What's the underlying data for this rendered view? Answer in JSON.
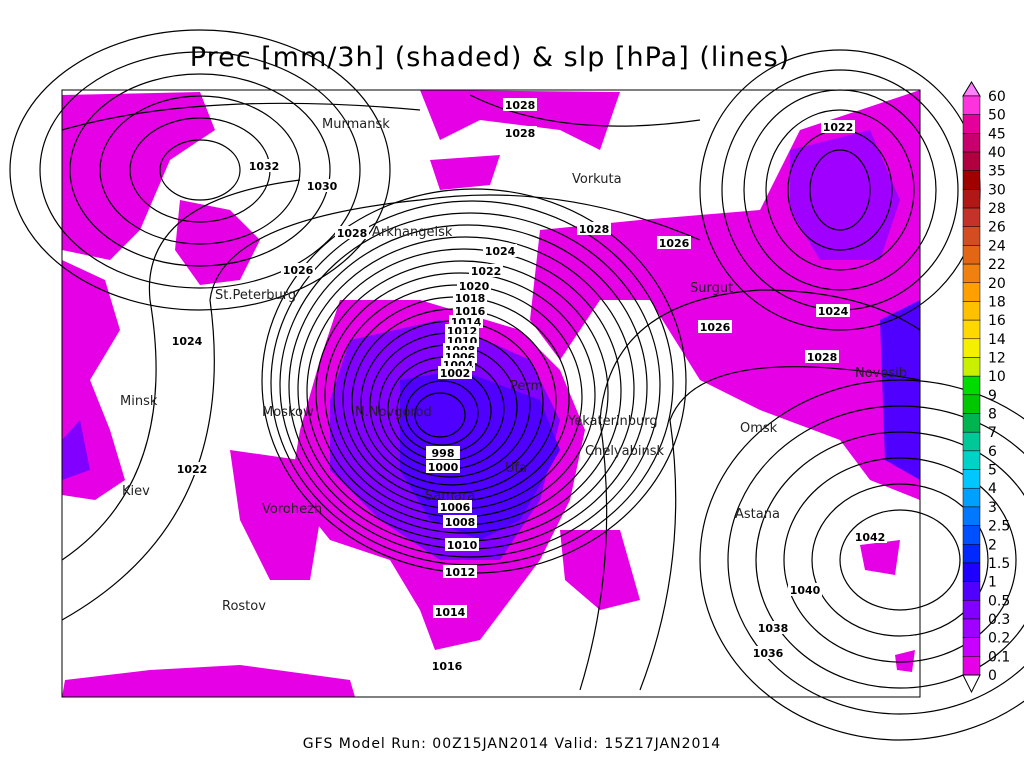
{
  "header": {
    "title": "Prec [mm/3h] (shaded) & slp [hPa] (lines)"
  },
  "footer": "GFS Model Run: 00Z15JAN2014 Valid: 15Z17JAN2014",
  "colorbar": {
    "levels": [
      60,
      50,
      45,
      40,
      35,
      30,
      28,
      26,
      24,
      22,
      20,
      18,
      16,
      14,
      12,
      10,
      9,
      8,
      7,
      6,
      5,
      4,
      3,
      2.5,
      2,
      1.5,
      1,
      0.5,
      0.3,
      0.2,
      0.1,
      0
    ],
    "colors": [
      "#ff80ff",
      "#ff33dd",
      "#e6009a",
      "#c8006e",
      "#b00040",
      "#a00000",
      "#b01818",
      "#c4322a",
      "#d44c22",
      "#e26614",
      "#f08010",
      "#ffa000",
      "#ffc000",
      "#ffd800",
      "#f5f000",
      "#c8f000",
      "#00dc00",
      "#00c800",
      "#00b450",
      "#00c896",
      "#00d2c8",
      "#00c8ff",
      "#00a0ff",
      "#0078ff",
      "#0050ff",
      "#0028ff",
      "#1e00ff",
      "#5000ff",
      "#8200ff",
      "#a000ff",
      "#c800ff",
      "#e600e6"
    ]
  },
  "cities": [
    "Murmansk",
    "Vorkuta",
    "Arkhangelsk",
    "St.Peterburg",
    "Minsk",
    "Moskow",
    "N.Novgorod",
    "Perm",
    "Yekaterinburg",
    "Chelyabinsk",
    "Ufa",
    "Samara",
    "Kiev",
    "Vorohezh",
    "Rostov",
    "Surgut",
    "Omsk",
    "Novosib",
    "Astana"
  ],
  "isobar_labels": [
    1028,
    1028,
    1032,
    1030,
    1028,
    1024,
    1022,
    1020,
    1018,
    1016,
    1014,
    1012,
    1010,
    1008,
    1006,
    1004,
    1002,
    998,
    1000,
    1006,
    1008,
    1010,
    1012,
    1014,
    1016,
    1022,
    1024,
    1026,
    1028,
    1026,
    1026,
    1024,
    1028,
    1022,
    1042,
    1040,
    1038,
    1036
  ]
}
